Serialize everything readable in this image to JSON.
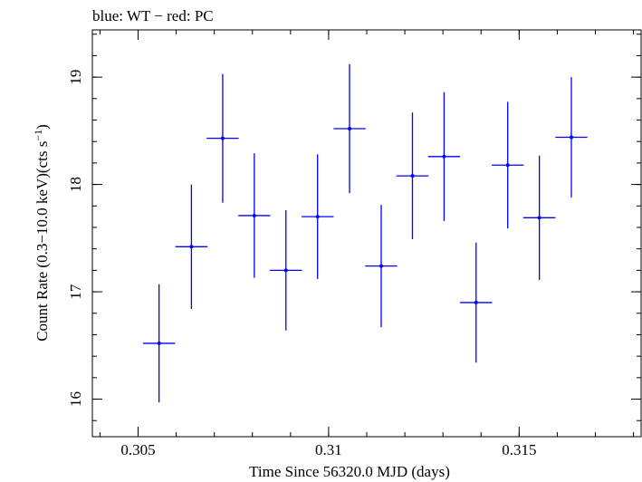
{
  "chart_data": {
    "type": "scatter",
    "title": "blue: WT − red: PC",
    "xlabel": "Time Since 56320.0 MJD (days)",
    "ylabel_main": "Count Rate (0.3−10.0 keV)(cts s",
    "ylabel_sup": "−1",
    "ylabel_end": ")",
    "xlim": [
      0.3038,
      0.3182
    ],
    "ylim": [
      15.65,
      19.44
    ],
    "x_ticks": [
      {
        "value": 0.305,
        "label": "0.305"
      },
      {
        "value": 0.31,
        "label": "0.31"
      },
      {
        "value": 0.315,
        "label": "0.315"
      }
    ],
    "y_ticks": [
      {
        "value": 16,
        "label": "16"
      },
      {
        "value": 17,
        "label": "17"
      },
      {
        "value": 18,
        "label": "18"
      },
      {
        "value": 19,
        "label": "19"
      }
    ],
    "x_minor_step": 0.001,
    "y_minor_step": 0.2,
    "series": [
      {
        "color": "#0000ff",
        "points": [
          {
            "x": 0.30555,
            "xerr": 0.00042,
            "y": 16.52,
            "yerr": 0.55
          },
          {
            "x": 0.3064,
            "xerr": 0.00042,
            "y": 17.42,
            "yerr": 0.58
          },
          {
            "x": 0.30722,
            "xerr": 0.00042,
            "y": 18.43,
            "yerr": 0.6
          },
          {
            "x": 0.30805,
            "xerr": 0.00042,
            "y": 17.71,
            "yerr": 0.58
          },
          {
            "x": 0.30888,
            "xerr": 0.00042,
            "y": 17.2,
            "yerr": 0.56
          },
          {
            "x": 0.30971,
            "xerr": 0.00042,
            "y": 17.7,
            "yerr": 0.58
          },
          {
            "x": 0.31055,
            "xerr": 0.00042,
            "y": 18.52,
            "yerr": 0.6
          },
          {
            "x": 0.31138,
            "xerr": 0.00042,
            "y": 17.24,
            "yerr": 0.57
          },
          {
            "x": 0.3122,
            "xerr": 0.00042,
            "y": 18.08,
            "yerr": 0.59
          },
          {
            "x": 0.31303,
            "xerr": 0.00042,
            "y": 18.26,
            "yerr": 0.6
          },
          {
            "x": 0.31387,
            "xerr": 0.00042,
            "y": 16.9,
            "yerr": 0.56
          },
          {
            "x": 0.3147,
            "xerr": 0.00042,
            "y": 18.18,
            "yerr": 0.59
          },
          {
            "x": 0.31553,
            "xerr": 0.00042,
            "y": 17.69,
            "yerr": 0.58
          },
          {
            "x": 0.31637,
            "xerr": 0.00042,
            "y": 18.44,
            "yerr": 0.56
          }
        ]
      }
    ]
  }
}
